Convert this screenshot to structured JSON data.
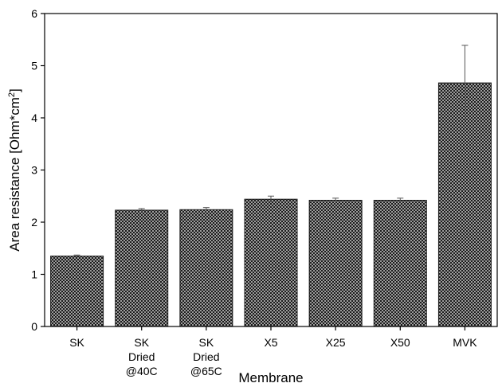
{
  "chart_data": {
    "type": "bar",
    "xlabel": "Membrane",
    "ylabel_main": "Area resistance [Ohm*cm",
    "ylabel_sup": "2",
    "ylabel_close": "]",
    "ylim": [
      0,
      6
    ],
    "yticks": [
      0,
      1,
      2,
      3,
      4,
      5,
      6
    ],
    "grid": false,
    "bar_pattern": "dark crosshatch",
    "bar_color": "#1a1a1a",
    "categories": [
      {
        "lines": [
          "SK"
        ]
      },
      {
        "lines": [
          "SK",
          "Dried",
          "@40C"
        ]
      },
      {
        "lines": [
          "SK",
          "Dried",
          "@65C"
        ]
      },
      {
        "lines": [
          "X5"
        ]
      },
      {
        "lines": [
          "X25"
        ]
      },
      {
        "lines": [
          "X50"
        ]
      },
      {
        "lines": [
          "MVK"
        ]
      }
    ],
    "values": [
      1.35,
      2.23,
      2.24,
      2.44,
      2.42,
      2.42,
      4.67
    ],
    "errors": [
      0.02,
      0.03,
      0.04,
      0.06,
      0.04,
      0.04,
      0.72
    ]
  }
}
